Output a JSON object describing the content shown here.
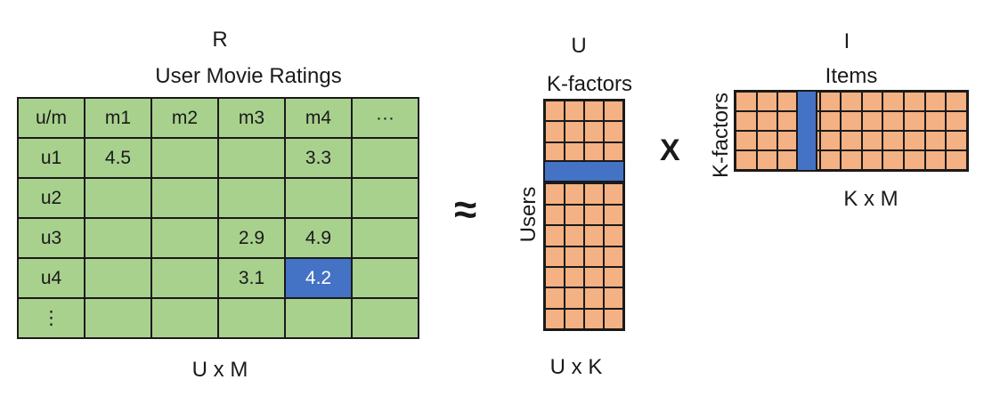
{
  "left": {
    "letter": "R",
    "title": "User Movie Ratings",
    "dims": "U x M",
    "table": [
      [
        "u/m",
        "m1",
        "m2",
        "m3",
        "m4",
        "···"
      ],
      [
        "u1",
        "4.5",
        "",
        "",
        "3.3",
        ""
      ],
      [
        "u2",
        "",
        "",
        "",
        "",
        ""
      ],
      [
        "u3",
        "",
        "",
        "2.9",
        "4.9",
        ""
      ],
      [
        "u4",
        "",
        "",
        "3.1",
        "4.2",
        ""
      ],
      [
        "⋮",
        "",
        "",
        "",
        "",
        ""
      ]
    ],
    "highlight_cell": [
      4,
      4
    ]
  },
  "approx_symbol": "≈",
  "user_matrix": {
    "letter": "U",
    "cols_label": "K-factors",
    "rows_label": "Users",
    "dims": "U x K",
    "highlighted_row": 5
  },
  "times_symbol": "X",
  "item_matrix": {
    "letter": "I",
    "cols_label": "Items",
    "rows_label": "K-factors",
    "dims": "K x M",
    "highlighted_col": 4
  },
  "colors": {
    "table_fill": "#a9d18e",
    "matrix_fill": "#f4b183",
    "highlight": "#4472c4",
    "border": "#1a1a1a"
  }
}
